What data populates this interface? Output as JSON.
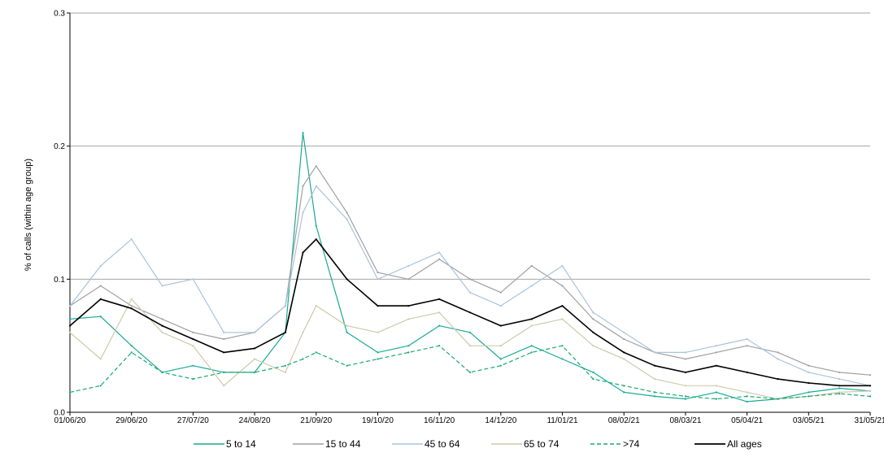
{
  "chart_data": {
    "type": "line",
    "title": "",
    "xlabel": "",
    "ylabel": "% of calls (within age group)",
    "ylim": [
      0,
      0.3
    ],
    "yticks": [
      "0.0",
      "0.1",
      "0.2",
      "0.3"
    ],
    "xlim": [
      "01/06/20",
      "31/05/21"
    ],
    "xticks": [
      "01/06/20",
      "29/06/20",
      "27/07/20",
      "24/08/20",
      "21/09/20",
      "19/10/20",
      "16/11/20",
      "14/12/20",
      "11/01/21",
      "08/02/21",
      "08/03/21",
      "05/04/21",
      "03/05/21",
      "31/05/21"
    ],
    "grid": "horizontal",
    "legend_position": "bottom",
    "x": [
      "01/06/20",
      "15/06/20",
      "29/06/20",
      "13/07/20",
      "27/07/20",
      "10/08/20",
      "24/08/20",
      "07/09/20",
      "15/09/20",
      "21/09/20",
      "05/10/20",
      "19/10/20",
      "02/11/20",
      "16/11/20",
      "30/11/20",
      "14/12/20",
      "28/12/20",
      "11/01/21",
      "25/01/21",
      "08/02/21",
      "22/02/21",
      "08/03/21",
      "22/03/21",
      "05/04/21",
      "19/04/21",
      "03/05/21",
      "17/05/21",
      "31/05/21"
    ],
    "series": [
      {
        "name": "5 to 14",
        "color": "#1aaa96",
        "dash": "solid",
        "values": [
          0.07,
          0.072,
          0.05,
          0.03,
          0.035,
          0.03,
          0.03,
          0.06,
          0.21,
          0.14,
          0.06,
          0.045,
          0.05,
          0.065,
          0.06,
          0.04,
          0.05,
          0.04,
          0.03,
          0.015,
          0.012,
          0.01,
          0.015,
          0.008,
          0.01,
          0.015,
          0.018,
          0.016
        ]
      },
      {
        "name": "15 to 44",
        "color": "#a0a0a0",
        "dash": "solid",
        "values": [
          0.08,
          0.095,
          0.08,
          0.07,
          0.06,
          0.055,
          0.06,
          0.08,
          0.17,
          0.185,
          0.15,
          0.105,
          0.1,
          0.115,
          0.1,
          0.09,
          0.11,
          0.095,
          0.07,
          0.055,
          0.045,
          0.04,
          0.045,
          0.05,
          0.045,
          0.035,
          0.03,
          0.028
        ]
      },
      {
        "name": "45 to 64",
        "color": "#a9c4dc",
        "dash": "solid",
        "values": [
          0.08,
          0.11,
          0.13,
          0.095,
          0.1,
          0.06,
          0.06,
          0.08,
          0.15,
          0.17,
          0.145,
          0.1,
          0.11,
          0.12,
          0.09,
          0.08,
          0.095,
          0.11,
          0.075,
          0.06,
          0.045,
          0.045,
          0.05,
          0.055,
          0.04,
          0.03,
          0.025,
          0.02
        ]
      },
      {
        "name": "65 to 74",
        "color": "#cfc9ac",
        "dash": "solid",
        "values": [
          0.06,
          0.04,
          0.085,
          0.06,
          0.05,
          0.02,
          0.04,
          0.03,
          0.06,
          0.08,
          0.065,
          0.06,
          0.07,
          0.075,
          0.05,
          0.05,
          0.065,
          0.07,
          0.05,
          0.04,
          0.025,
          0.02,
          0.02,
          0.015,
          0.01,
          0.012,
          0.015,
          0.016
        ]
      },
      {
        "name": ">74",
        "color": "#1aaa6e",
        "dash": "dashed",
        "values": [
          0.015,
          0.02,
          0.045,
          0.03,
          0.025,
          0.03,
          0.03,
          0.035,
          0.04,
          0.045,
          0.035,
          0.04,
          0.045,
          0.05,
          0.03,
          0.035,
          0.045,
          0.05,
          0.025,
          0.02,
          0.015,
          0.012,
          0.01,
          0.012,
          0.01,
          0.012,
          0.014,
          0.012
        ]
      },
      {
        "name": "All ages",
        "color": "#000000",
        "dash": "solid",
        "values": [
          0.065,
          0.085,
          0.078,
          0.065,
          0.055,
          0.045,
          0.048,
          0.06,
          0.12,
          0.13,
          0.1,
          0.08,
          0.08,
          0.085,
          0.075,
          0.065,
          0.07,
          0.08,
          0.06,
          0.045,
          0.035,
          0.03,
          0.035,
          0.03,
          0.025,
          0.022,
          0.02,
          0.02
        ]
      }
    ]
  }
}
